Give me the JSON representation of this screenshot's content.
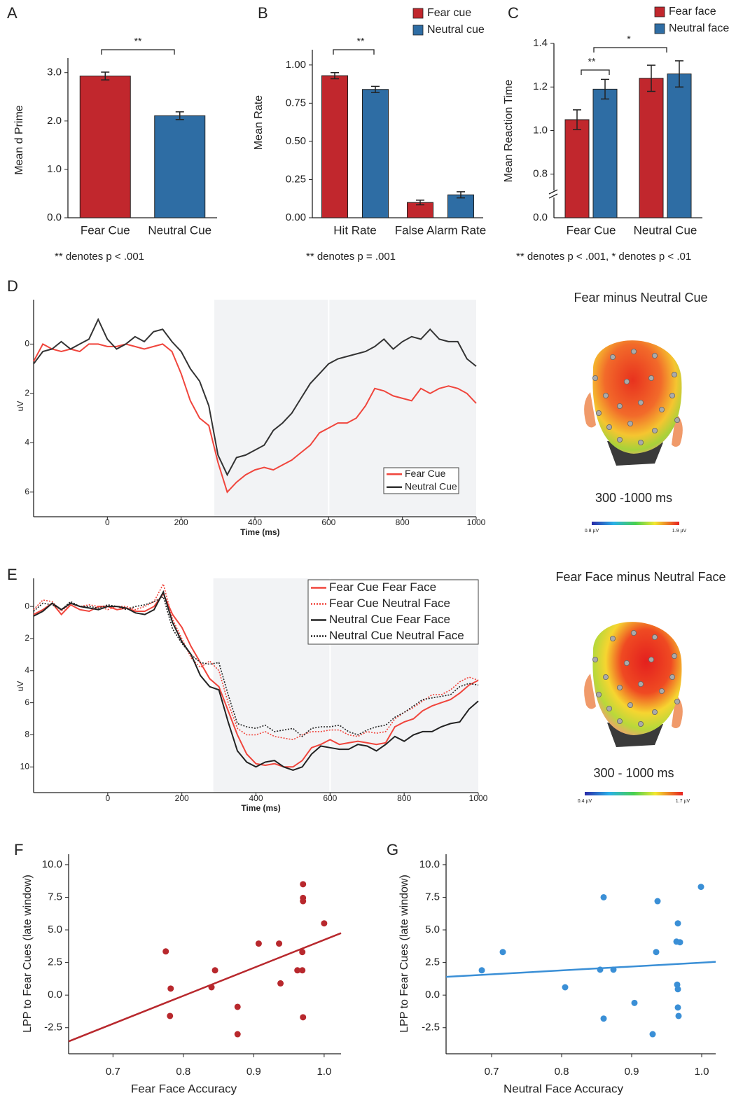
{
  "chart_data": [
    {
      "type": "bar",
      "panel": "A",
      "ylabel": "Mean d Prime",
      "categories": [
        "Fear Cue",
        "Neutral Cue"
      ],
      "values": [
        2.93,
        2.11
      ],
      "errors": [
        0.08,
        0.08
      ],
      "colors": [
        "#c1272d",
        "#2e6da4"
      ],
      "ylim": [
        0,
        3.3
      ],
      "yticks": [
        {
          "value": 0,
          "label": "0.0"
        },
        {
          "value": 1,
          "label": "1.0"
        },
        {
          "value": 2,
          "label": "2.0"
        },
        {
          "value": 3,
          "label": "3.0"
        }
      ],
      "annotations": [
        "**"
      ],
      "note": "** denotes p < .001"
    },
    {
      "type": "bar",
      "panel": "B",
      "ylabel": "Mean Rate",
      "categories": [
        "Hit Rate",
        "False Alarm Rate"
      ],
      "series": [
        {
          "name": "Fear cue",
          "color": "#c1272d",
          "values": [
            0.93,
            0.1
          ],
          "errors": [
            0.02,
            0.015
          ]
        },
        {
          "name": "Neutral cue",
          "color": "#2e6da4",
          "values": [
            0.84,
            0.15
          ],
          "errors": [
            0.02,
            0.02
          ]
        }
      ],
      "ylim": [
        0,
        1.1
      ],
      "yticks": [
        {
          "value": 0,
          "label": "0.00"
        },
        0.25,
        {
          "value": 0.5,
          "label": "0.50"
        },
        0.75,
        {
          "value": 1,
          "label": "1.00"
        }
      ],
      "annotations": [
        "**"
      ],
      "note": "** denotes p = .001"
    },
    {
      "type": "bar",
      "panel": "C",
      "ylabel": "Mean Reaction Time",
      "categories": [
        "Fear Cue",
        "Neutral Cue"
      ],
      "series": [
        {
          "name": "Fear face",
          "color": "#c1272d",
          "values": [
            1.05,
            1.24
          ],
          "errors": [
            0.045,
            0.06
          ]
        },
        {
          "name": "Neutral face",
          "color": "#2e6da4",
          "values": [
            1.19,
            1.26
          ],
          "errors": [
            0.045,
            0.06
          ]
        }
      ],
      "ylim": [
        0.6,
        1.4
      ],
      "yticks": [
        0.8,
        {
          "value": 1,
          "label": "1.0"
        },
        1.2,
        1.4
      ],
      "axis_break": true,
      "break_tick": {
        "value": 0,
        "label": "0.0"
      },
      "annotations": [
        "**",
        "*"
      ],
      "note": "** denotes p < .001, * denotes p < .01"
    },
    {
      "type": "line",
      "panel": "D",
      "ylabel": "uV",
      "xlabel": "Time (ms)",
      "y_inverted": true,
      "x": [
        -200,
        -175,
        -150,
        -125,
        -100,
        -75,
        -50,
        -25,
        0,
        25,
        50,
        75,
        100,
        125,
        150,
        175,
        200,
        225,
        250,
        275,
        300,
        325,
        350,
        375,
        400,
        425,
        450,
        475,
        500,
        525,
        550,
        575,
        600,
        625,
        650,
        675,
        700,
        725,
        750,
        775,
        800,
        825,
        850,
        875,
        900,
        925,
        950,
        975,
        1000
      ],
      "series": [
        {
          "name": "Fear Cue",
          "color": "#f0453c",
          "dashed": false,
          "values": [
            0.7,
            0.0,
            0.2,
            0.3,
            0.2,
            0.3,
            0.0,
            0.0,
            0.1,
            0.1,
            0.0,
            0.1,
            0.2,
            0.1,
            0.0,
            0.3,
            1.2,
            2.3,
            3.0,
            3.3,
            4.8,
            6.0,
            5.6,
            5.3,
            5.1,
            5.0,
            5.1,
            4.9,
            4.7,
            4.4,
            4.1,
            3.6,
            3.4,
            3.2,
            3.2,
            3.0,
            2.5,
            1.8,
            1.9,
            2.1,
            2.2,
            2.3,
            1.8,
            2.0,
            1.8,
            1.7,
            1.8,
            2.0,
            2.4
          ]
        },
        {
          "name": "Neutral Cue",
          "color": "#333333",
          "dashed": false,
          "values": [
            0.8,
            0.3,
            0.2,
            -0.1,
            0.2,
            0.0,
            -0.2,
            -1.0,
            -0.2,
            0.2,
            0.0,
            -0.3,
            -0.1,
            -0.5,
            -0.6,
            -0.1,
            0.3,
            1.0,
            1.5,
            2.5,
            4.5,
            5.3,
            4.6,
            4.5,
            4.3,
            4.1,
            3.5,
            3.2,
            2.8,
            2.2,
            1.6,
            1.2,
            0.8,
            0.6,
            0.5,
            0.4,
            0.3,
            0.1,
            -0.2,
            0.2,
            -0.1,
            -0.3,
            -0.2,
            -0.6,
            -0.2,
            -0.1,
            -0.1,
            0.6,
            0.9
          ]
        }
      ],
      "xlim": [
        -200,
        1000
      ],
      "xticks": [
        0,
        200,
        400,
        600,
        800,
        1000
      ],
      "ylim": [
        -1.8,
        7.0
      ],
      "yticks": [
        0,
        2,
        4,
        6
      ],
      "shaded_window": [
        290,
        1000
      ],
      "marker_line": 600
    },
    {
      "type": "line",
      "panel": "E",
      "ylabel": "uV",
      "xlabel": "Time (ms)",
      "y_inverted": true,
      "x": [
        -200,
        -175,
        -150,
        -125,
        -100,
        -75,
        -50,
        -25,
        0,
        25,
        50,
        75,
        100,
        125,
        150,
        175,
        200,
        225,
        250,
        275,
        300,
        325,
        350,
        375,
        400,
        425,
        450,
        475,
        500,
        525,
        550,
        575,
        600,
        625,
        650,
        675,
        700,
        725,
        750,
        775,
        800,
        825,
        850,
        875,
        900,
        925,
        950,
        975,
        1000
      ],
      "series": [
        {
          "name": "Fear Cue Fear Face",
          "color": "#f0453c",
          "dashed": false,
          "values": [
            0.5,
            0.2,
            -0.2,
            0.5,
            -0.1,
            0.2,
            0.3,
            0.0,
            0.0,
            0.2,
            0.1,
            0.3,
            0.3,
            0.0,
            -0.8,
            0.5,
            1.3,
            2.5,
            3.5,
            4.5,
            5.0,
            6.5,
            8.0,
            9.2,
            9.8,
            9.9,
            9.8,
            10.0,
            10.0,
            9.6,
            8.8,
            8.6,
            8.3,
            8.6,
            8.5,
            8.4,
            8.5,
            8.6,
            8.5,
            7.5,
            7.2,
            7.0,
            6.5,
            6.2,
            6.0,
            5.8,
            5.4,
            4.9,
            4.6
          ]
        },
        {
          "name": "Fear Cue Neutral Face",
          "color": "#f0453c",
          "dashed": true,
          "values": [
            0.2,
            -0.4,
            -0.3,
            0.3,
            -0.2,
            0.0,
            -0.1,
            0.0,
            0.2,
            0.0,
            0.0,
            0.2,
            0.0,
            -0.3,
            -1.4,
            0.8,
            2.0,
            3.2,
            3.8,
            3.4,
            4.0,
            6.0,
            7.6,
            8.0,
            8.0,
            7.8,
            8.1,
            8.2,
            8.3,
            8.0,
            7.8,
            7.8,
            7.7,
            7.7,
            8.0,
            8.1,
            7.8,
            7.9,
            7.8,
            7.0,
            6.6,
            6.3,
            5.9,
            5.5,
            5.5,
            5.2,
            4.7,
            4.4,
            4.6
          ]
        },
        {
          "name": "Neutral Cue Fear Face",
          "color": "#222222",
          "dashed": false,
          "values": [
            0.6,
            0.3,
            -0.2,
            0.2,
            -0.2,
            0.0,
            0.1,
            0.2,
            0.0,
            0.0,
            0.1,
            0.4,
            0.5,
            0.2,
            -0.9,
            1.0,
            2.2,
            3.0,
            4.3,
            5.0,
            5.2,
            7.2,
            9.0,
            9.7,
            10.0,
            9.7,
            9.6,
            10.0,
            10.2,
            10.0,
            9.2,
            8.7,
            8.8,
            8.9,
            8.9,
            8.6,
            8.7,
            9.0,
            8.6,
            8.1,
            8.4,
            8.0,
            7.8,
            7.8,
            7.5,
            7.3,
            7.2,
            6.4,
            5.9
          ]
        },
        {
          "name": "Neutral Cue Neutral Face",
          "color": "#222222",
          "dashed": true,
          "values": [
            0.3,
            -0.2,
            -0.1,
            0.2,
            -0.3,
            0.0,
            0.0,
            0.1,
            -0.1,
            0.0,
            0.2,
            0.0,
            -0.1,
            -0.3,
            -0.6,
            1.4,
            2.3,
            3.0,
            3.5,
            3.6,
            3.5,
            5.5,
            7.3,
            7.5,
            7.6,
            7.4,
            7.8,
            7.7,
            7.6,
            8.1,
            7.6,
            7.5,
            7.5,
            7.4,
            7.8,
            8.0,
            7.7,
            7.5,
            7.4,
            6.9,
            6.6,
            6.2,
            5.8,
            5.7,
            5.6,
            5.5,
            5.0,
            4.8,
            4.9
          ]
        }
      ],
      "xlim": [
        -200,
        1000
      ],
      "xticks": [
        0,
        200,
        400,
        600,
        800,
        1000
      ],
      "ylim": [
        -1.75,
        11.6
      ],
      "yticks": [
        0,
        2,
        4,
        6,
        8,
        10
      ],
      "shaded_window": [
        285,
        1000
      ],
      "marker_line": 600
    },
    {
      "type": "scatter",
      "panel": "F",
      "xlabel": "Fear Face Accuracy",
      "ylabel": "LPP to Fear Cues (late window)",
      "color": "#b8282d",
      "x": [
        0.775,
        0.782,
        0.781,
        0.84,
        0.845,
        0.877,
        0.877,
        0.907,
        0.936,
        0.938,
        0.962,
        0.969,
        0.969,
        0.97,
        0.97,
        0.97,
        0.97,
        1.0
      ],
      "y": [
        3.35,
        0.5,
        -1.6,
        0.6,
        1.9,
        -0.9,
        -3.0,
        3.95,
        3.95,
        0.9,
        1.9,
        1.9,
        3.3,
        -1.7,
        7.45,
        7.2,
        8.5,
        5.5
      ],
      "fit": {
        "x": [
          0.637,
          1.024
        ],
        "y": [
          -3.55,
          4.75
        ]
      },
      "xlim": [
        0.637,
        1.024
      ],
      "xticks": [
        0.7,
        0.8,
        0.9,
        {
          "value": 1,
          "label": "1.0"
        }
      ],
      "ylim": [
        -4.5,
        10.8
      ],
      "yticks": [
        {
          "value": 10,
          "label": "10.0"
        },
        7.5,
        {
          "value": 5,
          "label": "5.0"
        },
        2.5,
        {
          "value": 0,
          "label": "0.0"
        },
        -2.5
      ]
    },
    {
      "type": "scatter",
      "panel": "G",
      "xlabel": "Neutral Face Accuracy",
      "ylabel": "LPP to Fear Cues (late window)",
      "color": "#3a8fd6",
      "x": [
        0.686,
        0.716,
        0.805,
        0.855,
        0.86,
        0.86,
        0.874,
        0.904,
        0.93,
        0.935,
        0.937,
        0.964,
        0.966,
        0.969,
        0.965,
        0.966,
        0.966,
        0.967,
        0.999
      ],
      "y": [
        1.9,
        3.3,
        0.6,
        1.95,
        7.5,
        -1.8,
        1.95,
        -0.6,
        -3.0,
        3.3,
        7.2,
        4.1,
        5.5,
        4.05,
        0.8,
        0.45,
        -0.95,
        -1.6,
        8.3
      ],
      "fit": {
        "x": [
          0.635,
          1.02
        ],
        "y": [
          1.4,
          2.55
        ]
      },
      "xlim": [
        0.635,
        1.02
      ],
      "xticks": [
        0.7,
        0.8,
        0.9,
        {
          "value": 1,
          "label": "1.0"
        }
      ],
      "ylim": [
        -4.5,
        10.8
      ],
      "yticks": [
        {
          "value": 10,
          "label": "10.0"
        },
        7.5,
        {
          "value": 5,
          "label": "5.0"
        },
        2.5,
        {
          "value": 0,
          "label": "0.0"
        },
        -2.5
      ]
    }
  ],
  "topomaps": [
    {
      "title": "Fear minus Neutral Cue",
      "window": "300 -1000 ms",
      "scale_min": "0.8 µV",
      "scale_max": "1.9 µV"
    },
    {
      "title": "Fear Face minus Neutral Face",
      "window": "300 - 1000 ms",
      "scale_min": "0.4 µV",
      "scale_max": "1.7 µV"
    }
  ]
}
